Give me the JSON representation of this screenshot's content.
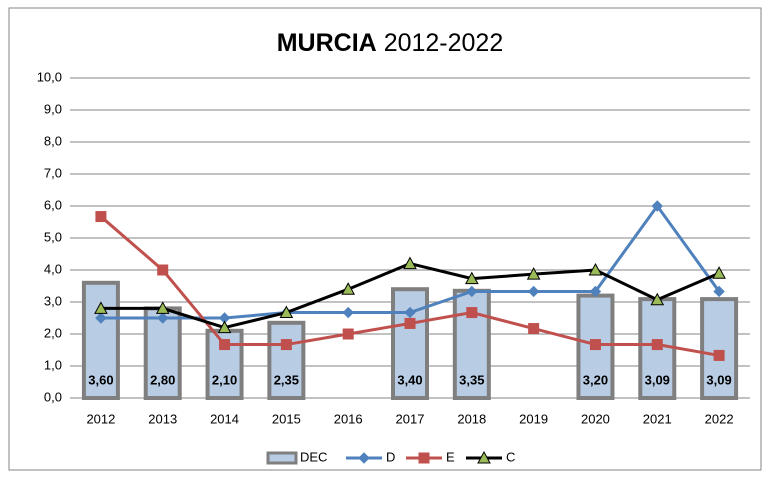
{
  "chart_data": {
    "type": "bar-line",
    "title": [
      "MURCIA",
      "2012-2022"
    ],
    "categories": [
      "2012",
      "2013",
      "2014",
      "2015",
      "2016",
      "2017",
      "2018",
      "2019",
      "2020",
      "2021",
      "2022"
    ],
    "bars": {
      "name": "DEC",
      "color": "#b8cce4",
      "edge": "#7f7f7f",
      "values": [
        3.6,
        2.8,
        2.1,
        2.35,
        null,
        3.4,
        3.35,
        null,
        3.2,
        3.09,
        3.09
      ],
      "value_labels": [
        "3,60",
        "2,80",
        "2,10",
        "2,35",
        null,
        "3,40",
        "3,35",
        null,
        "3,20",
        "3,09",
        "3,09"
      ]
    },
    "series": [
      {
        "name": "D",
        "color": "#4f81bd",
        "marker": "diamond",
        "values": [
          2.5,
          2.5,
          2.5,
          2.67,
          2.67,
          2.67,
          3.33,
          3.33,
          3.33,
          6.0,
          3.33
        ]
      },
      {
        "name": "E",
        "color": "#c0504d",
        "marker": "square",
        "values": [
          5.67,
          4.0,
          1.67,
          1.67,
          2.0,
          2.33,
          2.67,
          2.17,
          1.67,
          1.67,
          1.33
        ]
      },
      {
        "name": "C",
        "color": "#000000",
        "marker": "triangle",
        "marker_color": "#9bbb59",
        "values": [
          2.8,
          2.8,
          2.2,
          2.67,
          3.4,
          4.2,
          3.73,
          3.87,
          4.0,
          3.07,
          3.9
        ]
      }
    ],
    "ylim": [
      0,
      10
    ],
    "yticks": [
      {
        "value": 0,
        "label": "0,0"
      },
      {
        "value": 1,
        "label": "1,0"
      },
      {
        "value": 2,
        "label": "2,0"
      },
      {
        "value": 3,
        "label": "3,0"
      },
      {
        "value": 4,
        "label": "4,0"
      },
      {
        "value": 5,
        "label": "5,0"
      },
      {
        "value": 6,
        "label": "6,0"
      },
      {
        "value": 7,
        "label": "7,0"
      },
      {
        "value": 8,
        "label": "8,0"
      },
      {
        "value": 9,
        "label": "9,0"
      },
      {
        "value": 10,
        "label": "10,0"
      }
    ],
    "grid": true
  }
}
